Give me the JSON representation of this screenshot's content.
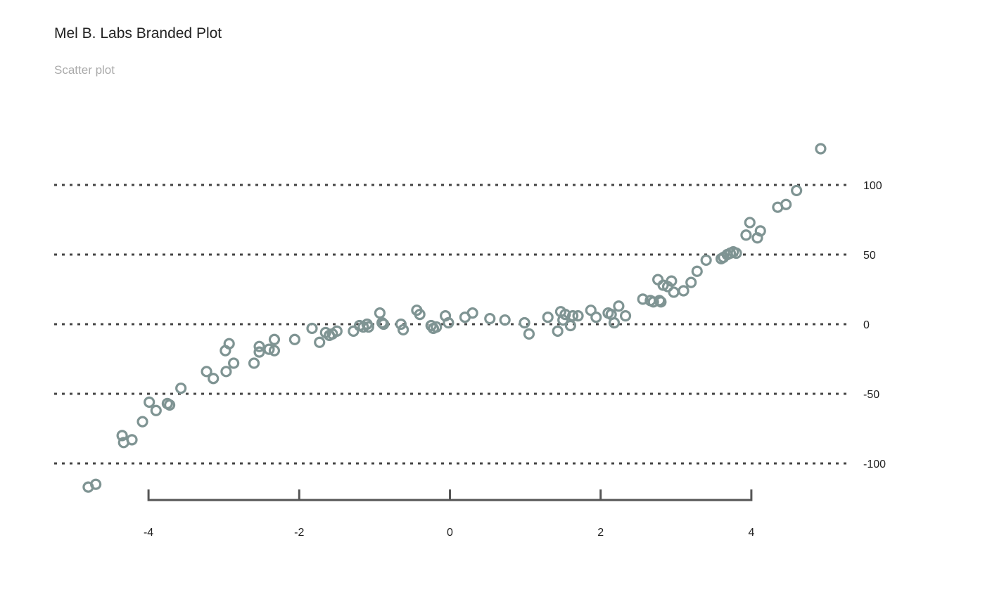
{
  "header": {
    "title": "Mel B. Labs Branded Plot",
    "subtitle": "Scatter plot"
  },
  "colors": {
    "points": "#7f9493",
    "gridlines": "#444444",
    "axis": "#555555",
    "text": "#222222",
    "subtitle": "#aaaaaa"
  },
  "chart_data": {
    "type": "scatter",
    "title": "Mel B. Labs Branded Plot",
    "subtitle": "Scatter plot",
    "xlim": [
      -4.6,
      5.0
    ],
    "ylim": [
      -120,
      128
    ],
    "x_ticks": [
      -4,
      -2,
      0,
      2,
      4
    ],
    "x_tick_labels": [
      "-4",
      "-2",
      "0",
      "2",
      "4"
    ],
    "y_ticks": [
      100,
      50,
      0,
      -50,
      -100
    ],
    "y_tick_labels": [
      "100",
      "50",
      "0",
      "-50",
      "-100"
    ],
    "grid": "horizontal-dashed",
    "y_axis_position": "right",
    "marker": "hollow-circle",
    "legend": "none",
    "points": [
      {
        "x": -4.8,
        "y": -117
      },
      {
        "x": -4.7,
        "y": -115
      },
      {
        "x": -4.35,
        "y": -80
      },
      {
        "x": -4.33,
        "y": -85
      },
      {
        "x": -4.22,
        "y": -83
      },
      {
        "x": -4.08,
        "y": -70
      },
      {
        "x": -3.99,
        "y": -56
      },
      {
        "x": -3.9,
        "y": -62
      },
      {
        "x": -3.75,
        "y": -57
      },
      {
        "x": -3.72,
        "y": -58
      },
      {
        "x": -3.57,
        "y": -46
      },
      {
        "x": -3.23,
        "y": -34
      },
      {
        "x": -3.14,
        "y": -39
      },
      {
        "x": -2.98,
        "y": -19
      },
      {
        "x": -2.93,
        "y": -14
      },
      {
        "x": -2.97,
        "y": -34
      },
      {
        "x": -2.87,
        "y": -28
      },
      {
        "x": -2.6,
        "y": -28
      },
      {
        "x": -2.53,
        "y": -16
      },
      {
        "x": -2.53,
        "y": -20
      },
      {
        "x": -2.4,
        "y": -18
      },
      {
        "x": -2.33,
        "y": -11
      },
      {
        "x": -2.33,
        "y": -19
      },
      {
        "x": -2.06,
        "y": -11
      },
      {
        "x": -1.83,
        "y": -3
      },
      {
        "x": -1.73,
        "y": -13
      },
      {
        "x": -1.65,
        "y": -6
      },
      {
        "x": -1.6,
        "y": -8
      },
      {
        "x": -1.56,
        "y": -7
      },
      {
        "x": -1.5,
        "y": -5
      },
      {
        "x": -1.28,
        "y": -5
      },
      {
        "x": -1.2,
        "y": -1
      },
      {
        "x": -1.15,
        "y": -2
      },
      {
        "x": -1.1,
        "y": 0
      },
      {
        "x": -1.08,
        "y": -2
      },
      {
        "x": -0.93,
        "y": 8
      },
      {
        "x": -0.9,
        "y": 1
      },
      {
        "x": -0.88,
        "y": 0
      },
      {
        "x": -0.65,
        "y": 0
      },
      {
        "x": -0.62,
        "y": -4
      },
      {
        "x": -0.44,
        "y": 10
      },
      {
        "x": -0.4,
        "y": 7
      },
      {
        "x": -0.25,
        "y": -1
      },
      {
        "x": -0.22,
        "y": -3
      },
      {
        "x": -0.18,
        "y": -2
      },
      {
        "x": -0.06,
        "y": 6
      },
      {
        "x": -0.02,
        "y": 1
      },
      {
        "x": 0.2,
        "y": 5
      },
      {
        "x": 0.3,
        "y": 8
      },
      {
        "x": 0.53,
        "y": 4
      },
      {
        "x": 0.73,
        "y": 3
      },
      {
        "x": 0.99,
        "y": 1
      },
      {
        "x": 1.05,
        "y": -7
      },
      {
        "x": 1.3,
        "y": 5
      },
      {
        "x": 1.43,
        "y": -5
      },
      {
        "x": 1.47,
        "y": 9
      },
      {
        "x": 1.5,
        "y": 3
      },
      {
        "x": 1.53,
        "y": 7
      },
      {
        "x": 1.6,
        "y": -1
      },
      {
        "x": 1.63,
        "y": 6
      },
      {
        "x": 1.7,
        "y": 6
      },
      {
        "x": 1.87,
        "y": 10
      },
      {
        "x": 1.94,
        "y": 5
      },
      {
        "x": 2.1,
        "y": 8
      },
      {
        "x": 2.14,
        "y": 7
      },
      {
        "x": 2.18,
        "y": 1
      },
      {
        "x": 2.24,
        "y": 13
      },
      {
        "x": 2.33,
        "y": 6
      },
      {
        "x": 2.56,
        "y": 18
      },
      {
        "x": 2.66,
        "y": 17
      },
      {
        "x": 2.7,
        "y": 16
      },
      {
        "x": 2.76,
        "y": 32
      },
      {
        "x": 2.78,
        "y": 17
      },
      {
        "x": 2.8,
        "y": 16
      },
      {
        "x": 2.83,
        "y": 28
      },
      {
        "x": 2.89,
        "y": 27
      },
      {
        "x": 2.94,
        "y": 31
      },
      {
        "x": 2.97,
        "y": 23
      },
      {
        "x": 3.1,
        "y": 24
      },
      {
        "x": 3.2,
        "y": 30
      },
      {
        "x": 3.28,
        "y": 38
      },
      {
        "x": 3.4,
        "y": 46
      },
      {
        "x": 3.6,
        "y": 47
      },
      {
        "x": 3.63,
        "y": 48
      },
      {
        "x": 3.68,
        "y": 50
      },
      {
        "x": 3.72,
        "y": 51
      },
      {
        "x": 3.76,
        "y": 52
      },
      {
        "x": 3.8,
        "y": 51
      },
      {
        "x": 3.93,
        "y": 64
      },
      {
        "x": 3.98,
        "y": 73
      },
      {
        "x": 4.08,
        "y": 62
      },
      {
        "x": 4.12,
        "y": 67
      },
      {
        "x": 4.35,
        "y": 84
      },
      {
        "x": 4.46,
        "y": 86
      },
      {
        "x": 4.6,
        "y": 96
      },
      {
        "x": 4.92,
        "y": 126
      }
    ]
  }
}
